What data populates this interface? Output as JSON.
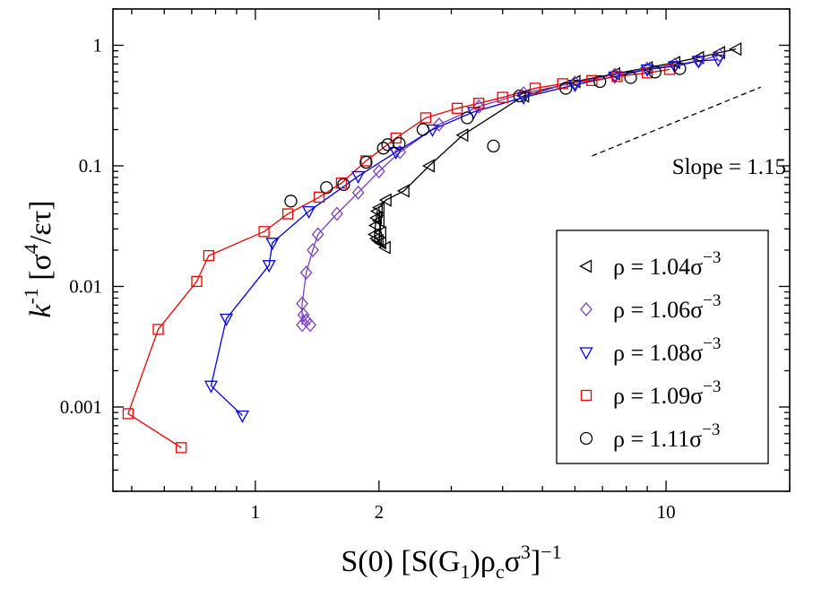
{
  "chart_data": {
    "type": "scatter",
    "xscale": "log",
    "yscale": "log",
    "xlim": [
      0.45,
      20
    ],
    "ylim": [
      0.0002,
      2
    ],
    "xticks": [
      {
        "value": 1,
        "label": "1"
      },
      {
        "value": 2,
        "label": "2"
      },
      {
        "value": 10,
        "label": "10"
      }
    ],
    "yticks": [
      {
        "value": 1,
        "label": "1"
      },
      {
        "value": 0.1,
        "label": "0.1"
      },
      {
        "value": 0.01,
        "label": "0.01"
      },
      {
        "value": 0.001,
        "label": "0.001"
      }
    ],
    "xlabel": {
      "main": "S(0) [S(G",
      "sub1": "1",
      "mid": ")ρ",
      "sub2": "c",
      "mid2": "σ",
      "sup1": "3",
      "end": "]",
      "sup2": "−1"
    },
    "ylabel": {
      "k": "k",
      "ksup": "-1",
      "bracket": " [σ",
      "sup": "4",
      "end": "/ετ]"
    },
    "legend_position": "lower-right",
    "annotation": {
      "text": "Slope = 1.15",
      "slope": 1.15,
      "line_x": [
        6.6,
        17.0
      ],
      "line_y": [
        0.1207,
        0.4493
      ]
    },
    "series": [
      {
        "name": "ρ = 1.04σ",
        "name_sup": "−3",
        "marker": "triangle-left",
        "color": "#000000",
        "line": true,
        "x": [
          2.07,
          2.02,
          1.99,
          1.97,
          1.95,
          1.96,
          1.97,
          1.98,
          2.0,
          2.02,
          2.0,
          2.08,
          2.3,
          2.65,
          3.2,
          4.5,
          6.0,
          7.5,
          9.0,
          10.5,
          12.0,
          13.5,
          14.8
        ],
        "y": [
          0.021,
          0.023,
          0.024,
          0.025,
          0.027,
          0.032,
          0.037,
          0.042,
          0.035,
          0.028,
          0.045,
          0.052,
          0.062,
          0.1,
          0.18,
          0.38,
          0.5,
          0.58,
          0.65,
          0.72,
          0.79,
          0.87,
          0.93
        ]
      },
      {
        "name": "ρ = 1.06σ",
        "name_sup": "−3",
        "marker": "diamond",
        "color": "#7b3fbf",
        "line": true,
        "x": [
          1.36,
          1.33,
          1.31,
          1.3,
          1.3,
          1.33,
          1.38,
          1.42,
          1.58,
          1.78,
          2.0,
          2.25,
          2.8,
          3.5,
          4.5,
          6.0,
          7.5,
          9.0,
          10.5,
          12.0,
          13.5
        ],
        "y": [
          0.0048,
          0.0052,
          0.0058,
          0.0048,
          0.0072,
          0.013,
          0.02,
          0.027,
          0.04,
          0.06,
          0.09,
          0.13,
          0.22,
          0.31,
          0.4,
          0.49,
          0.57,
          0.64,
          0.69,
          0.74,
          0.83
        ]
      },
      {
        "name": "ρ = 1.08σ",
        "name_sup": "−3",
        "marker": "triangle-down",
        "color": "#0000ee",
        "line": true,
        "x": [
          0.93,
          0.78,
          0.85,
          1.08,
          1.1,
          1.35,
          1.78,
          2.2,
          2.7,
          3.4,
          4.5,
          6.0,
          7.5,
          9.0,
          10.5,
          12.0,
          13.4
        ],
        "y": [
          0.00085,
          0.0015,
          0.0054,
          0.015,
          0.023,
          0.042,
          0.082,
          0.13,
          0.2,
          0.28,
          0.37,
          0.47,
          0.55,
          0.63,
          0.67,
          0.74,
          0.76
        ]
      },
      {
        "name": "ρ = 1.09σ",
        "name_sup": "−3",
        "marker": "square",
        "color": "#ee0000",
        "line": true,
        "x": [
          0.66,
          0.49,
          0.58,
          0.72,
          0.77,
          1.05,
          1.2,
          1.43,
          1.62,
          1.86,
          2.2,
          2.6,
          3.1,
          3.5,
          4.0,
          4.8,
          5.6,
          6.6,
          7.6,
          9.0,
          10.2
        ],
        "y": [
          0.00046,
          0.00088,
          0.0044,
          0.011,
          0.018,
          0.0285,
          0.04,
          0.055,
          0.072,
          0.11,
          0.17,
          0.25,
          0.3,
          0.33,
          0.37,
          0.44,
          0.48,
          0.51,
          0.55,
          0.59,
          0.63
        ]
      },
      {
        "name": "ρ = 1.11σ",
        "name_sup": "−3",
        "marker": "circle",
        "color": "#000000",
        "line": false,
        "x": [
          1.22,
          1.49,
          1.64,
          1.86,
          2.05,
          2.1,
          2.24,
          2.56,
          3.28,
          3.8,
          4.4,
          5.7,
          6.9,
          8.2,
          9.4,
          10.8
        ],
        "y": [
          0.051,
          0.066,
          0.07,
          0.107,
          0.14,
          0.15,
          0.153,
          0.2,
          0.25,
          0.146,
          0.38,
          0.44,
          0.5,
          0.54,
          0.6,
          0.64
        ]
      }
    ]
  }
}
